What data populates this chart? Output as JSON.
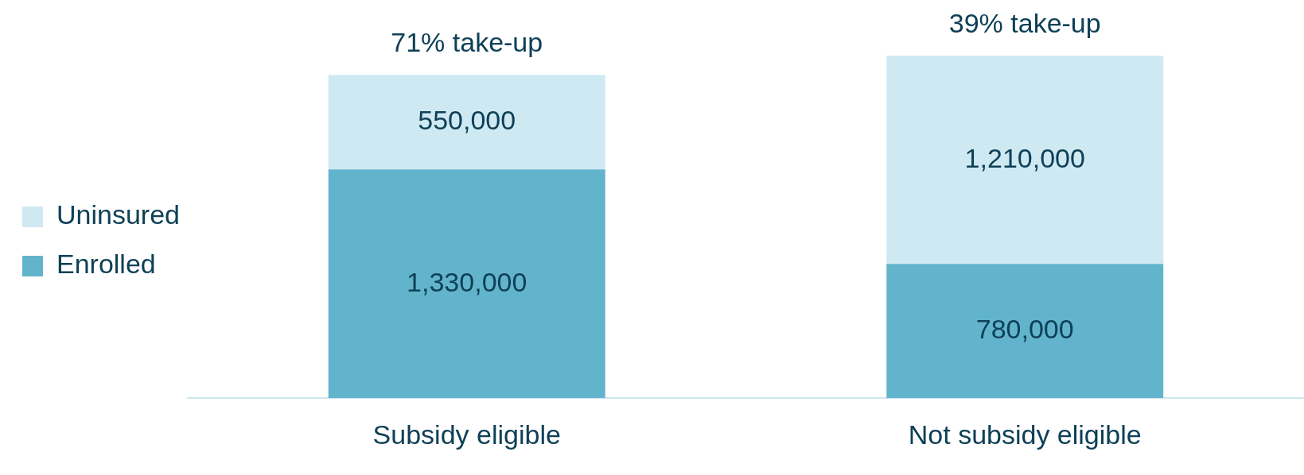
{
  "chart_data": {
    "type": "bar",
    "stacked": true,
    "categories": [
      "Subsidy eligible",
      "Not subsidy eligible"
    ],
    "series": [
      {
        "name": "Enrolled",
        "color": "#62b4cc",
        "values": [
          1330000,
          780000
        ],
        "value_labels": [
          "1,330,000",
          "780,000"
        ]
      },
      {
        "name": "Uninsured",
        "color": "#cfe9f2",
        "values": [
          550000,
          1210000
        ],
        "value_labels": [
          "550,000",
          "1,210,000"
        ]
      }
    ],
    "annotations": [
      {
        "text": "71% take-up",
        "x": "Subsidy eligible",
        "y": 1880000
      },
      {
        "text": "39% take-up",
        "x": "Not subsidy eligible",
        "y": 1990000
      }
    ],
    "legend": "left",
    "grid": false
  }
}
